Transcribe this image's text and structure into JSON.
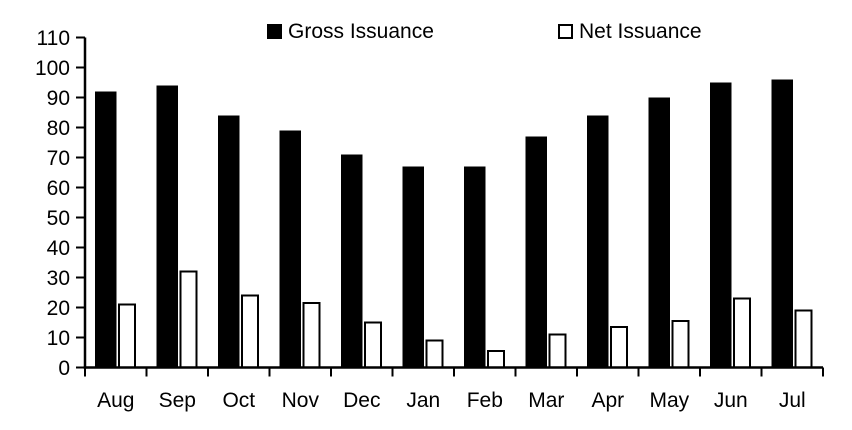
{
  "chart_data": {
    "type": "bar",
    "title": "",
    "xlabel": "",
    "ylabel": "",
    "categories": [
      "Aug",
      "Sep",
      "Oct",
      "Nov",
      "Dec",
      "Jan",
      "Feb",
      "Mar",
      "Apr",
      "May",
      "Jun",
      "Jul"
    ],
    "series": [
      {
        "name": "Gross Issuance",
        "values": [
          92,
          94,
          84,
          79,
          71,
          67,
          67,
          77,
          84,
          90,
          95,
          96
        ],
        "fill": "#000000",
        "stroke": "#000000",
        "marker": "filled-square"
      },
      {
        "name": "Net Issuance",
        "values": [
          21,
          32,
          24,
          21.5,
          15,
          9,
          5.5,
          11,
          13.5,
          15.5,
          23,
          19
        ],
        "fill": "#ffffff",
        "stroke": "#000000",
        "marker": "open-square"
      }
    ],
    "ylim": [
      0,
      110
    ],
    "ytick_step": 10,
    "grid": false,
    "legend_position": "top",
    "axis_color": "#000000",
    "background": "#ffffff"
  }
}
